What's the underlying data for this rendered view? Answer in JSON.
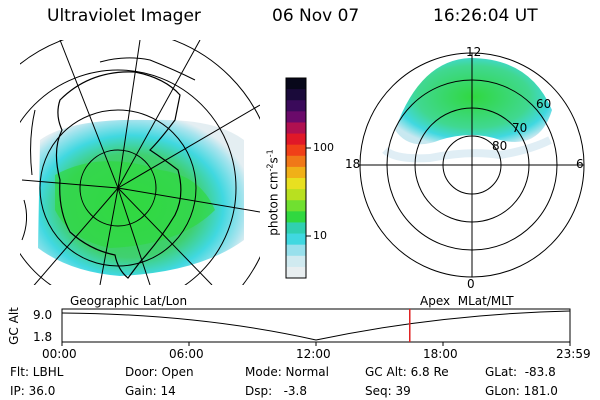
{
  "header": {
    "title": "Ultraviolet Imager",
    "date": "06 Nov 07",
    "time": "16:26:04 UT"
  },
  "colorbar": {
    "unit_prefix": "photon cm",
    "unit_exp1": "-2",
    "unit_mid": "s",
    "unit_exp2": "-1",
    "ticks": [
      "100",
      "10"
    ],
    "colors": [
      "#08081a",
      "#1a0a3a",
      "#3a0a5a",
      "#6a0a6a",
      "#b01050",
      "#e01828",
      "#f04018",
      "#f07818",
      "#f0b018",
      "#e8e020",
      "#b8e020",
      "#70e030",
      "#30d840",
      "#30d0b0",
      "#40d8e0",
      "#98e0ec",
      "#d0eaf0",
      "#e8eef0"
    ]
  },
  "left_map": {
    "label": "Geographic Lat/Lon"
  },
  "right_map": {
    "label": "Apex  MLat/MLT",
    "mlt_labels": {
      "top": "12",
      "left": "18",
      "right": "6",
      "bottom": "0"
    },
    "lat_labels": [
      "60",
      "70",
      "80"
    ]
  },
  "timeline": {
    "ylabel": "GC Alt",
    "y_ticks": [
      "9.0",
      "1.8"
    ],
    "x_ticks": [
      "00:00",
      "06:00",
      "12:00",
      "18:00",
      "23:59"
    ],
    "current_time_hours": 16.43,
    "marker_color": "#e02020"
  },
  "status": {
    "filter": "Flt: LBHL",
    "ip": "IP: 36.0",
    "door": "Door: Open",
    "gain": "Gain: 14",
    "mode": "Mode: Normal",
    "dsp": "Dsp:   -3.8",
    "gc_alt": "GC Alt: 6.8 Re",
    "seq": "Seq: 39",
    "glat": "GLat:  -83.8",
    "glon": "GLon: 181.0"
  }
}
